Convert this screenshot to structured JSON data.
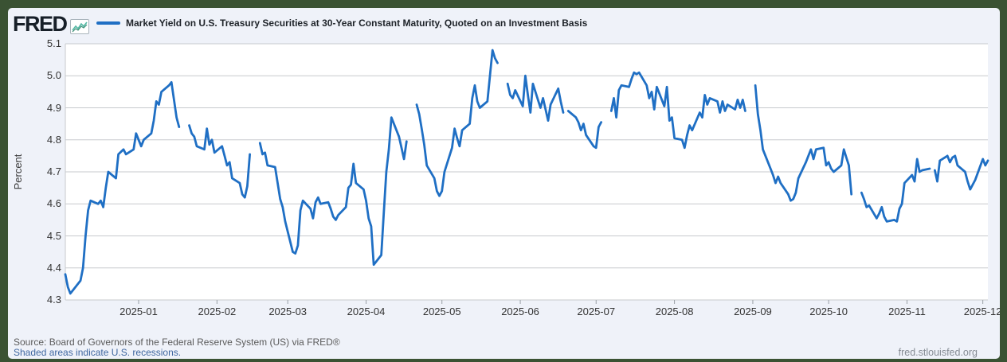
{
  "frame": {
    "border_color": "#3a5233",
    "background": "#eff2f9"
  },
  "header": {
    "logo_text": "FRED",
    "logo_icon": "fred-sparkline-icon"
  },
  "chart_data": {
    "type": "line",
    "title": "Market Yield on U.S. Treasury Securities at 30-Year Constant Maturity, Quoted on an Investment Basis",
    "xlabel": "",
    "ylabel": "Percent",
    "ylim": [
      4.3,
      5.1
    ],
    "y_ticks": [
      "5.1",
      "5.0",
      "4.9",
      "4.8",
      "4.7",
      "4.6",
      "4.5",
      "4.4",
      "4.3"
    ],
    "x_ticks": [
      "2025-01",
      "2025-02",
      "2025-03",
      "2025-04",
      "2025-05",
      "2025-06",
      "2025-07",
      "2025-08",
      "2025-09",
      "2025-10",
      "2025-11",
      "2025-12"
    ],
    "x_domain": [
      "2024-12-03",
      "2025-12-03"
    ],
    "grid": "horizontal",
    "legend_position": "top",
    "line_color": "#1f6fc4",
    "plot_background": "#ffffff",
    "gridline_color": "#c7cacd",
    "series": [
      {
        "name": "Market Yield on U.S. Treasury Securities at 30-Year Constant Maturity, Quoted on an Investment Basis",
        "points": [
          [
            "2024-12-03",
            4.38
          ],
          [
            "2024-12-04",
            4.34
          ],
          [
            "2024-12-05",
            4.32
          ],
          [
            "2024-12-06",
            4.33
          ],
          [
            "2024-12-09",
            4.36
          ],
          [
            "2024-12-10",
            4.4
          ],
          [
            "2024-12-11",
            4.5
          ],
          [
            "2024-12-12",
            4.58
          ],
          [
            "2024-12-13",
            4.61
          ],
          [
            "2024-12-16",
            4.6
          ],
          [
            "2024-12-17",
            4.61
          ],
          [
            "2024-12-18",
            4.59
          ],
          [
            "2024-12-19",
            4.65
          ],
          [
            "2024-12-20",
            4.7
          ],
          [
            "2024-12-23",
            4.68
          ],
          [
            "2024-12-24",
            4.755
          ],
          [
            "2024-12-26",
            4.77
          ],
          [
            "2024-12-27",
            4.755
          ],
          [
            "2024-12-30",
            4.77
          ],
          [
            "2024-12-31",
            4.82
          ],
          [
            "2025-01-02",
            4.78
          ],
          [
            "2025-01-03",
            4.8
          ],
          [
            "2025-01-06",
            4.82
          ],
          [
            "2025-01-07",
            4.86
          ],
          [
            "2025-01-08",
            4.92
          ],
          [
            "2025-01-09",
            4.91
          ],
          [
            "2025-01-10",
            4.95
          ],
          [
            "2025-01-13",
            4.97
          ],
          [
            "2025-01-14",
            4.98
          ],
          [
            "2025-01-15",
            4.925
          ],
          [
            "2025-01-16",
            4.87
          ],
          [
            "2025-01-17",
            4.84
          ],
          [
            "2025-01-21",
            4.845
          ],
          [
            "2025-01-22",
            4.82
          ],
          [
            "2025-01-23",
            4.81
          ],
          [
            "2025-01-24",
            4.78
          ],
          [
            "2025-01-27",
            4.77
          ],
          [
            "2025-01-28",
            4.835
          ],
          [
            "2025-01-29",
            4.785
          ],
          [
            "2025-01-30",
            4.8
          ],
          [
            "2025-01-31",
            4.76
          ],
          [
            "2025-02-03",
            4.78
          ],
          [
            "2025-02-04",
            4.75
          ],
          [
            "2025-02-05",
            4.72
          ],
          [
            "2025-02-06",
            4.73
          ],
          [
            "2025-02-07",
            4.68
          ],
          [
            "2025-02-10",
            4.665
          ],
          [
            "2025-02-11",
            4.63
          ],
          [
            "2025-02-12",
            4.62
          ],
          [
            "2025-02-13",
            4.655
          ],
          [
            "2025-02-14",
            4.755
          ],
          [
            "2025-02-18",
            4.79
          ],
          [
            "2025-02-19",
            4.755
          ],
          [
            "2025-02-20",
            4.76
          ],
          [
            "2025-02-21",
            4.72
          ],
          [
            "2025-02-24",
            4.715
          ],
          [
            "2025-02-25",
            4.665
          ],
          [
            "2025-02-26",
            4.615
          ],
          [
            "2025-02-27",
            4.59
          ],
          [
            "2025-02-28",
            4.545
          ],
          [
            "2025-03-03",
            4.45
          ],
          [
            "2025-03-04",
            4.445
          ],
          [
            "2025-03-05",
            4.47
          ],
          [
            "2025-03-06",
            4.58
          ],
          [
            "2025-03-07",
            4.61
          ],
          [
            "2025-03-10",
            4.585
          ],
          [
            "2025-03-11",
            4.555
          ],
          [
            "2025-03-12",
            4.605
          ],
          [
            "2025-03-13",
            4.62
          ],
          [
            "2025-03-14",
            4.6
          ],
          [
            "2025-03-17",
            4.605
          ],
          [
            "2025-03-18",
            4.585
          ],
          [
            "2025-03-19",
            4.56
          ],
          [
            "2025-03-20",
            4.55
          ],
          [
            "2025-03-21",
            4.565
          ],
          [
            "2025-03-24",
            4.59
          ],
          [
            "2025-03-25",
            4.65
          ],
          [
            "2025-03-26",
            4.66
          ],
          [
            "2025-03-27",
            4.725
          ],
          [
            "2025-03-28",
            4.665
          ],
          [
            "2025-03-31",
            4.645
          ],
          [
            "2025-04-01",
            4.61
          ],
          [
            "2025-04-02",
            4.555
          ],
          [
            "2025-04-03",
            4.53
          ],
          [
            "2025-04-04",
            4.41
          ],
          [
            "2025-04-07",
            4.44
          ],
          [
            "2025-04-08",
            4.57
          ],
          [
            "2025-04-09",
            4.7
          ],
          [
            "2025-04-10",
            4.77
          ],
          [
            "2025-04-11",
            4.87
          ],
          [
            "2025-04-14",
            4.81
          ],
          [
            "2025-04-15",
            4.775
          ],
          [
            "2025-04-16",
            4.74
          ],
          [
            "2025-04-17",
            4.795
          ],
          [
            "2025-04-21",
            4.91
          ],
          [
            "2025-04-22",
            4.88
          ],
          [
            "2025-04-23",
            4.835
          ],
          [
            "2025-04-24",
            4.785
          ],
          [
            "2025-04-25",
            4.72
          ],
          [
            "2025-04-28",
            4.68
          ],
          [
            "2025-04-29",
            4.64
          ],
          [
            "2025-04-30",
            4.625
          ],
          [
            "2025-05-01",
            4.64
          ],
          [
            "2025-05-02",
            4.7
          ],
          [
            "2025-05-05",
            4.775
          ],
          [
            "2025-05-06",
            4.835
          ],
          [
            "2025-05-07",
            4.805
          ],
          [
            "2025-05-08",
            4.78
          ],
          [
            "2025-05-09",
            4.83
          ],
          [
            "2025-05-12",
            4.85
          ],
          [
            "2025-05-13",
            4.93
          ],
          [
            "2025-05-14",
            4.97
          ],
          [
            "2025-05-15",
            4.92
          ],
          [
            "2025-05-16",
            4.9
          ],
          [
            "2025-05-19",
            4.92
          ],
          [
            "2025-05-20",
            5.0
          ],
          [
            "2025-05-21",
            5.08
          ],
          [
            "2025-05-22",
            5.055
          ],
          [
            "2025-05-23",
            5.04
          ],
          [
            "2025-05-27",
            4.975
          ],
          [
            "2025-05-28",
            4.94
          ],
          [
            "2025-05-29",
            4.93
          ],
          [
            "2025-05-30",
            4.955
          ],
          [
            "2025-06-02",
            4.905
          ],
          [
            "2025-06-03",
            5.0
          ],
          [
            "2025-06-04",
            4.94
          ],
          [
            "2025-06-05",
            4.885
          ],
          [
            "2025-06-06",
            4.975
          ],
          [
            "2025-06-09",
            4.9
          ],
          [
            "2025-06-10",
            4.93
          ],
          [
            "2025-06-11",
            4.895
          ],
          [
            "2025-06-12",
            4.86
          ],
          [
            "2025-06-13",
            4.91
          ],
          [
            "2025-06-16",
            4.96
          ],
          [
            "2025-06-17",
            4.92
          ],
          [
            "2025-06-18",
            4.885
          ],
          [
            "2025-06-19",
            null
          ],
          [
            "2025-06-20",
            4.89
          ],
          [
            "2025-06-23",
            4.87
          ],
          [
            "2025-06-24",
            4.855
          ],
          [
            "2025-06-25",
            4.83
          ],
          [
            "2025-06-26",
            4.85
          ],
          [
            "2025-06-27",
            4.815
          ],
          [
            "2025-06-30",
            4.78
          ],
          [
            "2025-07-01",
            4.775
          ],
          [
            "2025-07-02",
            4.84
          ],
          [
            "2025-07-03",
            4.855
          ],
          [
            "2025-07-07",
            4.89
          ],
          [
            "2025-07-08",
            4.93
          ],
          [
            "2025-07-09",
            4.87
          ],
          [
            "2025-07-10",
            4.955
          ],
          [
            "2025-07-11",
            4.97
          ],
          [
            "2025-07-14",
            4.965
          ],
          [
            "2025-07-15",
            4.99
          ],
          [
            "2025-07-16",
            5.01
          ],
          [
            "2025-07-17",
            5.005
          ],
          [
            "2025-07-18",
            5.01
          ],
          [
            "2025-07-21",
            4.97
          ],
          [
            "2025-07-22",
            4.93
          ],
          [
            "2025-07-23",
            4.95
          ],
          [
            "2025-07-24",
            4.895
          ],
          [
            "2025-07-25",
            4.965
          ],
          [
            "2025-07-28",
            4.905
          ],
          [
            "2025-07-29",
            4.965
          ],
          [
            "2025-07-30",
            4.86
          ],
          [
            "2025-07-31",
            4.87
          ],
          [
            "2025-08-01",
            4.805
          ],
          [
            "2025-08-04",
            4.8
          ],
          [
            "2025-08-05",
            4.775
          ],
          [
            "2025-08-06",
            4.815
          ],
          [
            "2025-08-07",
            4.845
          ],
          [
            "2025-08-08",
            4.83
          ],
          [
            "2025-08-11",
            4.885
          ],
          [
            "2025-08-12",
            4.87
          ],
          [
            "2025-08-13",
            4.94
          ],
          [
            "2025-08-14",
            4.91
          ],
          [
            "2025-08-15",
            4.93
          ],
          [
            "2025-08-18",
            4.92
          ],
          [
            "2025-08-19",
            4.885
          ],
          [
            "2025-08-20",
            4.92
          ],
          [
            "2025-08-21",
            4.89
          ],
          [
            "2025-08-22",
            4.91
          ],
          [
            "2025-08-25",
            4.895
          ],
          [
            "2025-08-26",
            4.925
          ],
          [
            "2025-08-27",
            4.9
          ],
          [
            "2025-08-28",
            4.925
          ],
          [
            "2025-08-29",
            4.89
          ],
          [
            "2025-09-02",
            4.97
          ],
          [
            "2025-09-03",
            4.88
          ],
          [
            "2025-09-04",
            4.83
          ],
          [
            "2025-09-05",
            4.77
          ],
          [
            "2025-09-08",
            4.71
          ],
          [
            "2025-09-09",
            4.69
          ],
          [
            "2025-09-10",
            4.665
          ],
          [
            "2025-09-11",
            4.685
          ],
          [
            "2025-09-12",
            4.665
          ],
          [
            "2025-09-15",
            4.63
          ],
          [
            "2025-09-16",
            4.61
          ],
          [
            "2025-09-17",
            4.615
          ],
          [
            "2025-09-18",
            4.635
          ],
          [
            "2025-09-19",
            4.68
          ],
          [
            "2025-09-22",
            4.73
          ],
          [
            "2025-09-23",
            4.75
          ],
          [
            "2025-09-24",
            4.77
          ],
          [
            "2025-09-25",
            4.74
          ],
          [
            "2025-09-26",
            4.77
          ],
          [
            "2025-09-29",
            4.775
          ],
          [
            "2025-09-30",
            4.72
          ],
          [
            "2025-10-01",
            4.73
          ],
          [
            "2025-10-02",
            4.71
          ],
          [
            "2025-10-03",
            4.7
          ],
          [
            "2025-10-06",
            4.72
          ],
          [
            "2025-10-07",
            4.77
          ],
          [
            "2025-10-08",
            4.745
          ],
          [
            "2025-10-09",
            4.72
          ],
          [
            "2025-10-10",
            4.63
          ],
          [
            "2025-10-14",
            4.635
          ],
          [
            "2025-10-15",
            4.615
          ],
          [
            "2025-10-16",
            4.59
          ],
          [
            "2025-10-17",
            4.595
          ],
          [
            "2025-10-20",
            4.555
          ],
          [
            "2025-10-21",
            4.57
          ],
          [
            "2025-10-22",
            4.59
          ],
          [
            "2025-10-23",
            4.56
          ],
          [
            "2025-10-24",
            4.545
          ],
          [
            "2025-10-27",
            4.55
          ],
          [
            "2025-10-28",
            4.545
          ],
          [
            "2025-10-29",
            4.585
          ],
          [
            "2025-10-30",
            4.6
          ],
          [
            "2025-10-31",
            4.665
          ],
          [
            "2025-11-03",
            4.69
          ],
          [
            "2025-11-04",
            4.67
          ],
          [
            "2025-11-05",
            4.74
          ],
          [
            "2025-11-06",
            4.7
          ],
          [
            "2025-11-07",
            4.705
          ],
          [
            "2025-11-10",
            4.71
          ],
          [
            "2025-11-11",
            null
          ],
          [
            "2025-11-12",
            4.705
          ],
          [
            "2025-11-13",
            4.67
          ],
          [
            "2025-11-14",
            4.735
          ],
          [
            "2025-11-17",
            4.75
          ],
          [
            "2025-11-18",
            4.73
          ],
          [
            "2025-11-19",
            4.745
          ],
          [
            "2025-11-20",
            4.75
          ],
          [
            "2025-11-21",
            4.72
          ],
          [
            "2025-11-24",
            4.7
          ],
          [
            "2025-11-25",
            4.67
          ],
          [
            "2025-11-26",
            4.645
          ],
          [
            "2025-11-28",
            4.675
          ],
          [
            "2025-12-01",
            4.74
          ],
          [
            "2025-12-02",
            4.72
          ],
          [
            "2025-12-03",
            4.735
          ]
        ]
      }
    ]
  },
  "footer": {
    "source": "Source: Board of Governors of the Federal Reserve System (US) via FRED®",
    "note": "Shaded areas indicate U.S. recessions.",
    "watermark": "fred.stlouisfed.org"
  }
}
